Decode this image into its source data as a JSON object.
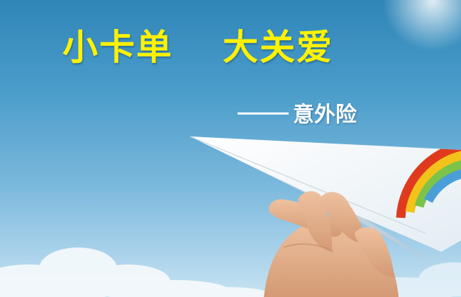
{
  "banner": {
    "title_part1": "小卡单",
    "title_part2": "大关爱",
    "subtitle": "意外险"
  },
  "colors": {
    "sky_top": "#2f86b8",
    "sky_bottom": "#c7e3f2",
    "title": "#fff200",
    "subtitle": "#ffffff"
  }
}
